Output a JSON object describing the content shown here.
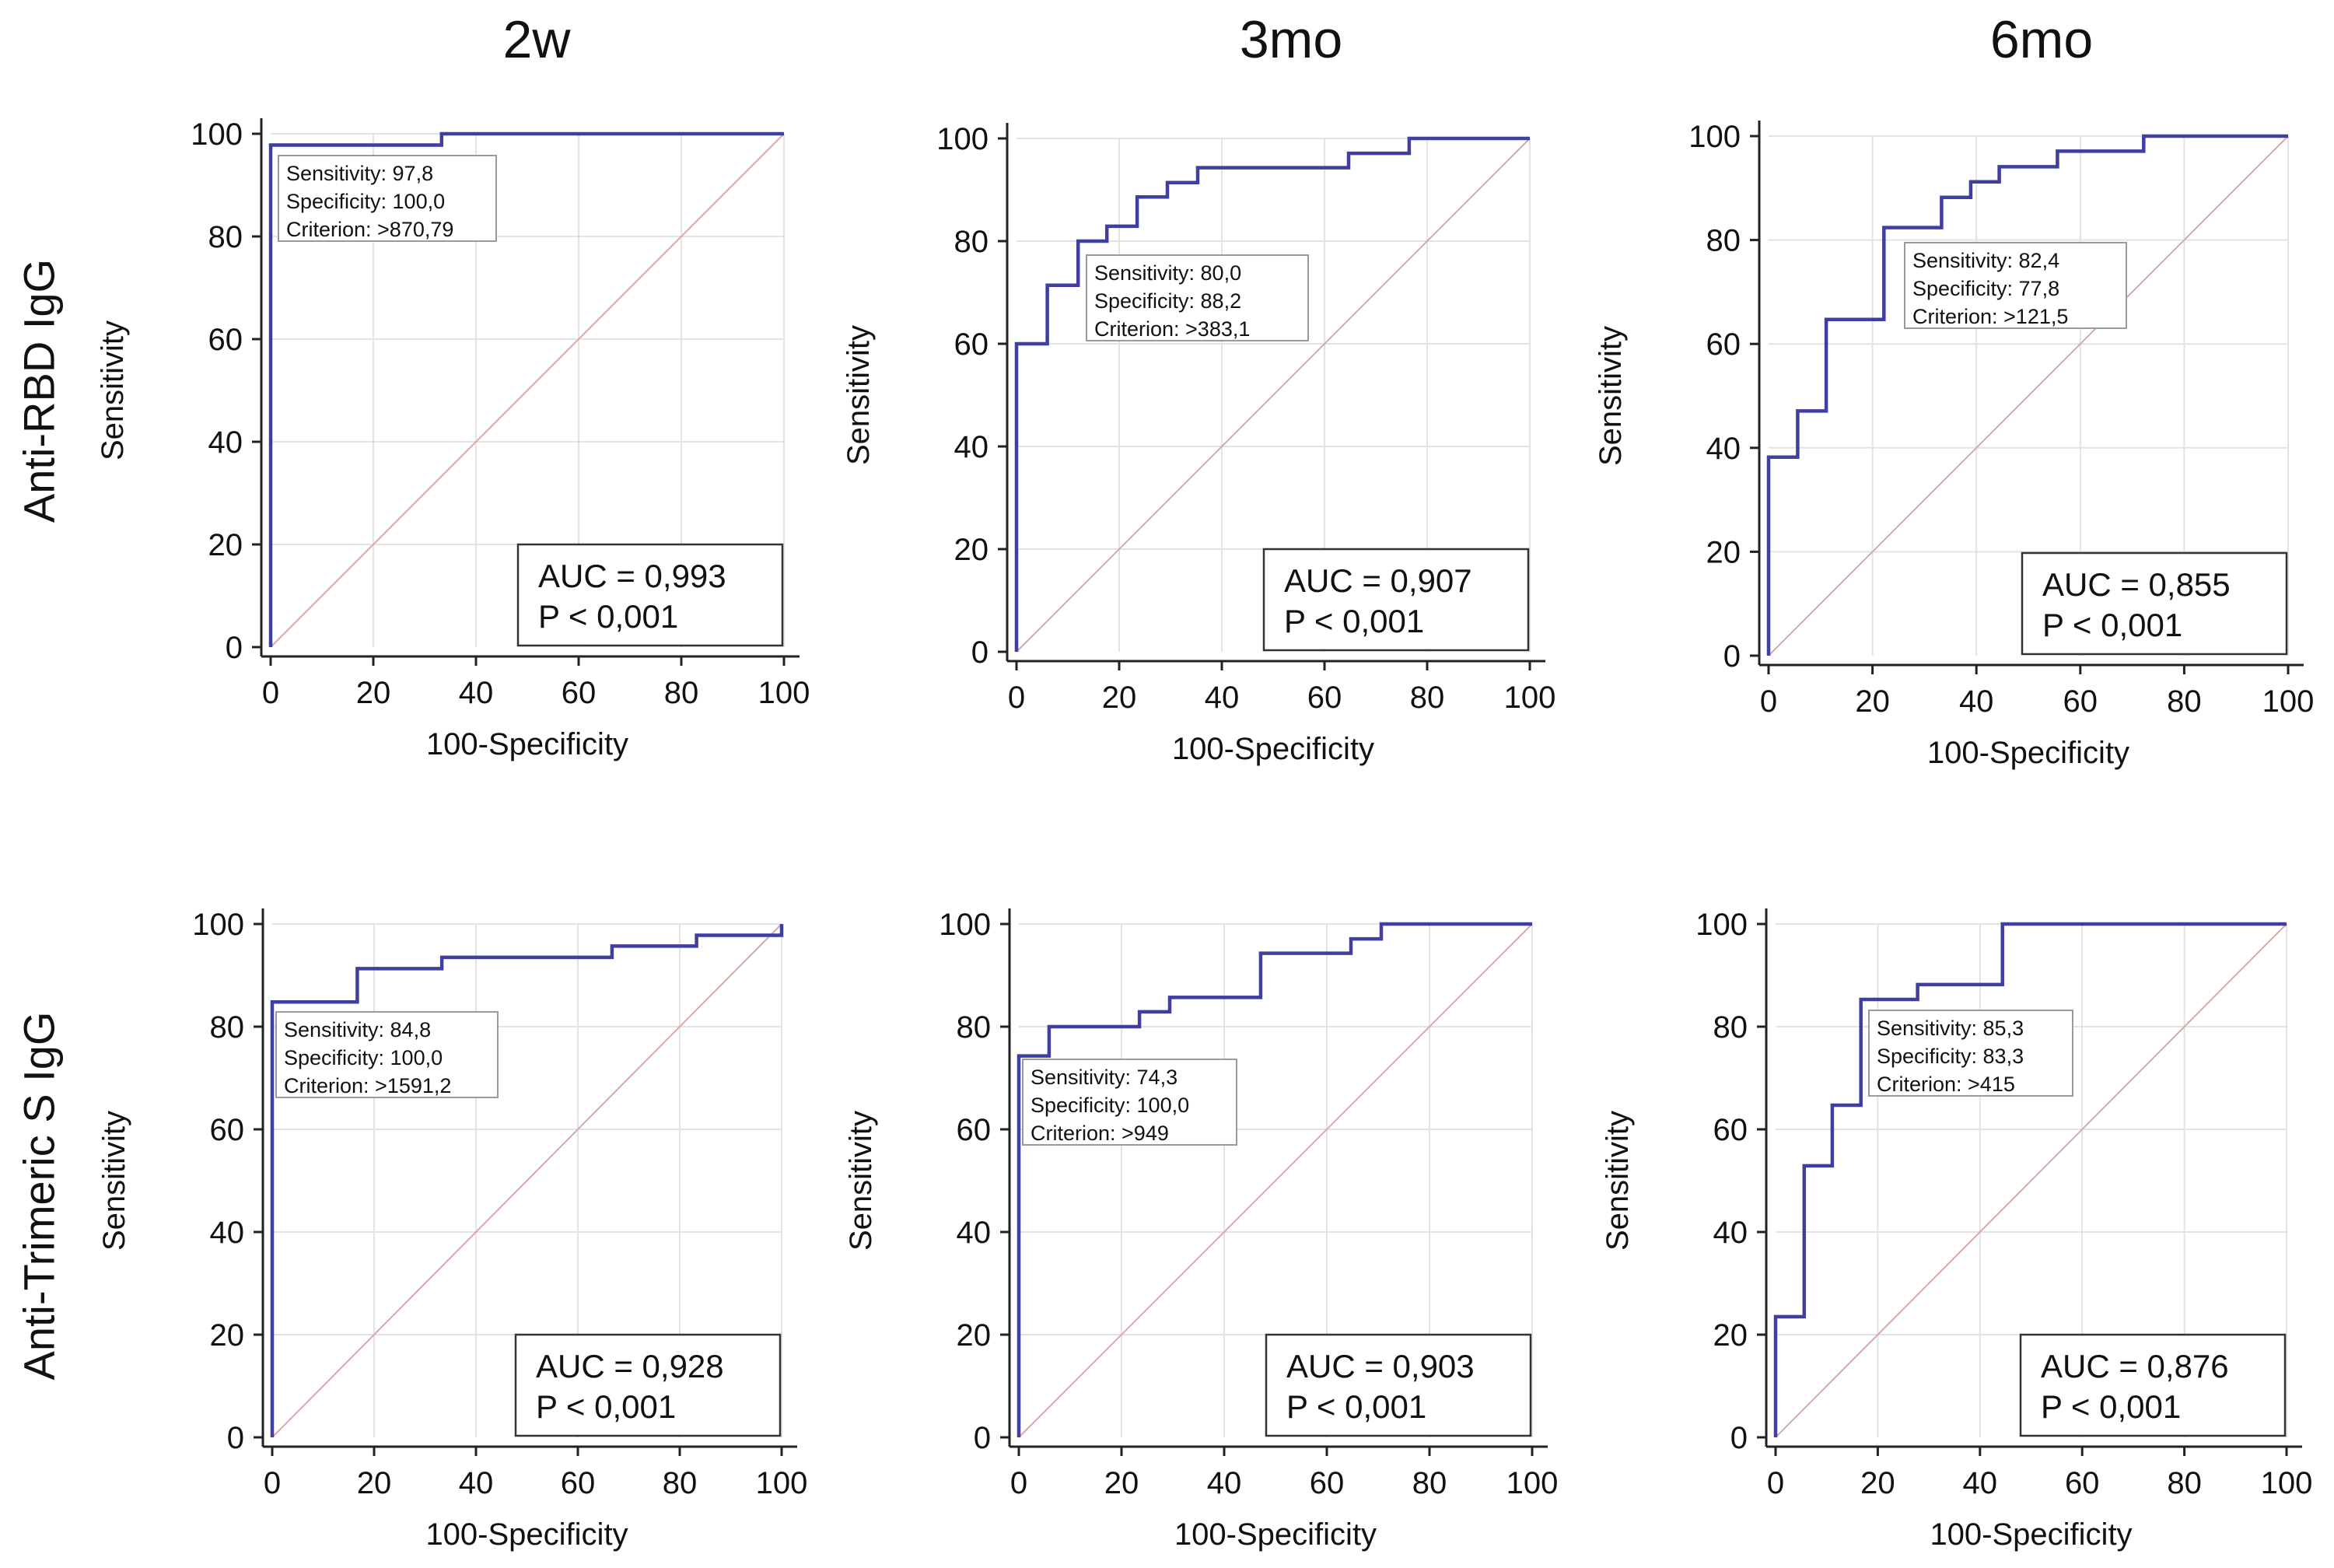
{
  "column_titles": [
    "2w",
    "3mo",
    "6mo"
  ],
  "row_labels": [
    "Anti-RBD IgG",
    "Anti-Trimeric S IgG"
  ],
  "colors": {
    "roc_line": "#3f3fa0",
    "diagonal": "#d9a8a8",
    "grid": "#e3e3e3",
    "axis": "#222222",
    "text": "#111111"
  },
  "chart_data": [
    {
      "type": "line",
      "title": "Anti-RBD IgG — 2w",
      "xlabel": "100-Specificity",
      "ylabel": "Sensitivity",
      "xlim": [
        0,
        100
      ],
      "ylim": [
        0,
        100
      ],
      "xticks": [
        0,
        20,
        40,
        60,
        80,
        100
      ],
      "yticks": [
        0,
        20,
        40,
        60,
        80,
        100
      ],
      "grid": true,
      "x": [
        0,
        0,
        33.3,
        33.3,
        100
      ],
      "y": [
        0,
        97.8,
        97.8,
        100,
        100
      ],
      "label_box": {
        "lines": [
          "Sensitivity: 97,8",
          "Specificity: 100,0",
          "Criterion: >870,79"
        ],
        "anchor_x": 0,
        "anchor_y": 97.8
      },
      "stats_box": {
        "lines": [
          "AUC = 0,993",
          "P < 0,001"
        ],
        "position": "bottom-right"
      }
    },
    {
      "type": "line",
      "title": "Anti-RBD IgG — 3mo",
      "xlabel": "100-Specificity",
      "ylabel": "Sensitivity",
      "xlim": [
        0,
        100
      ],
      "ylim": [
        0,
        100
      ],
      "xticks": [
        0,
        20,
        40,
        60,
        80,
        100
      ],
      "yticks": [
        0,
        20,
        40,
        60,
        80,
        100
      ],
      "grid": true,
      "x": [
        0,
        0,
        6,
        6,
        12,
        12,
        17.6,
        17.6,
        23.5,
        23.5,
        29.4,
        29.4,
        35.3,
        35.3,
        64.7,
        64.7,
        76.5,
        76.5,
        100
      ],
      "y": [
        0,
        60,
        60,
        71.4,
        71.4,
        80,
        80,
        82.9,
        82.9,
        88.6,
        88.6,
        91.4,
        91.4,
        94.3,
        94.3,
        97.1,
        97.1,
        100,
        100
      ],
      "label_box": {
        "lines": [
          "Sensitivity: 80,0",
          "Specificity: 88,2",
          "Criterion: >383,1"
        ],
        "anchor_x": 11.8,
        "anchor_y": 80
      },
      "stats_box": {
        "lines": [
          "AUC = 0,907",
          "P < 0,001"
        ],
        "position": "bottom-right"
      }
    },
    {
      "type": "line",
      "title": "Anti-RBD IgG — 6mo",
      "xlabel": "100-Specificity",
      "ylabel": "Sensitivity",
      "xlim": [
        0,
        100
      ],
      "ylim": [
        0,
        100
      ],
      "xticks": [
        0,
        20,
        40,
        60,
        80,
        100
      ],
      "yticks": [
        0,
        20,
        40,
        60,
        80,
        100
      ],
      "grid": true,
      "x": [
        0,
        0,
        5.6,
        5.6,
        11.1,
        11.1,
        22.2,
        22.2,
        33.3,
        33.3,
        38.9,
        38.9,
        44.4,
        44.4,
        55.6,
        55.6,
        72.2,
        72.2,
        100
      ],
      "y": [
        0,
        38.2,
        38.2,
        47.1,
        47.1,
        64.7,
        64.7,
        82.4,
        82.4,
        88.2,
        88.2,
        91.2,
        91.2,
        94.1,
        94.1,
        97.1,
        97.1,
        100,
        100
      ],
      "label_box": {
        "lines": [
          "Sensitivity: 82,4",
          "Specificity: 77,8",
          "Criterion: >121,5"
        ],
        "anchor_x": 22.2,
        "anchor_y": 82.4
      },
      "stats_box": {
        "lines": [
          "AUC = 0,855",
          "P < 0,001"
        ],
        "position": "bottom-right"
      }
    },
    {
      "type": "line",
      "title": "Anti-Trimeric S IgG — 2w",
      "xlabel": "100-Specificity",
      "ylabel": "Sensitivity",
      "xlim": [
        0,
        100
      ],
      "ylim": [
        0,
        100
      ],
      "xticks": [
        0,
        20,
        40,
        60,
        80,
        100
      ],
      "yticks": [
        0,
        20,
        40,
        60,
        80,
        100
      ],
      "grid": true,
      "x": [
        0,
        0,
        16.7,
        16.7,
        33.3,
        33.3,
        66.7,
        66.7,
        83.3,
        83.3,
        100,
        100
      ],
      "y": [
        0,
        84.8,
        84.8,
        91.3,
        91.3,
        93.5,
        93.5,
        95.7,
        95.7,
        97.8,
        97.8,
        100
      ],
      "label_box": {
        "lines": [
          "Sensitivity: 84,8",
          "Specificity: 100,0",
          "Criterion: >1591,2"
        ],
        "anchor_x": 0,
        "anchor_y": 84.8
      },
      "stats_box": {
        "lines": [
          "AUC = 0,928",
          "P < 0,001"
        ],
        "position": "bottom-right"
      }
    },
    {
      "type": "line",
      "title": "Anti-Trimeric S IgG — 3mo",
      "xlabel": "100-Specificity",
      "ylabel": "Sensitivity",
      "xlim": [
        0,
        100
      ],
      "ylim": [
        0,
        100
      ],
      "xticks": [
        0,
        20,
        40,
        60,
        80,
        100
      ],
      "yticks": [
        0,
        20,
        40,
        60,
        80,
        100
      ],
      "grid": true,
      "x": [
        0,
        0,
        5.9,
        5.9,
        23.5,
        23.5,
        29.4,
        29.4,
        47.1,
        47.1,
        64.7,
        64.7,
        70.6,
        70.6,
        100
      ],
      "y": [
        0,
        74.3,
        74.3,
        80,
        80,
        82.9,
        82.9,
        85.7,
        85.7,
        94.3,
        94.3,
        97.1,
        97.1,
        100,
        100
      ],
      "label_box": {
        "lines": [
          "Sensitivity: 74,3",
          "Specificity: 100,0",
          "Criterion: >949"
        ],
        "anchor_x": 0,
        "anchor_y": 74.3
      },
      "stats_box": {
        "lines": [
          "AUC = 0,903",
          "P < 0,001"
        ],
        "position": "bottom-right"
      }
    },
    {
      "type": "line",
      "title": "Anti-Trimeric S IgG — 6mo",
      "xlabel": "100-Specificity",
      "ylabel": "Sensitivity",
      "xlim": [
        0,
        100
      ],
      "ylim": [
        0,
        100
      ],
      "xticks": [
        0,
        20,
        40,
        60,
        80,
        100
      ],
      "yticks": [
        0,
        20,
        40,
        60,
        80,
        100
      ],
      "grid": true,
      "x": [
        0,
        0,
        5.6,
        5.6,
        11.1,
        11.1,
        16.7,
        16.7,
        27.8,
        27.8,
        44.4,
        44.4,
        100
      ],
      "y": [
        0,
        23.5,
        23.5,
        52.9,
        52.9,
        64.7,
        64.7,
        85.3,
        85.3,
        88.2,
        88.2,
        100,
        100
      ],
      "label_box": {
        "lines": [
          "Sensitivity: 85,3",
          "Specificity: 83,3",
          "Criterion: >415"
        ],
        "anchor_x": 16.7,
        "anchor_y": 85.3
      },
      "stats_box": {
        "lines": [
          "AUC = 0,876",
          "P < 0,001"
        ],
        "position": "bottom-right"
      }
    }
  ]
}
